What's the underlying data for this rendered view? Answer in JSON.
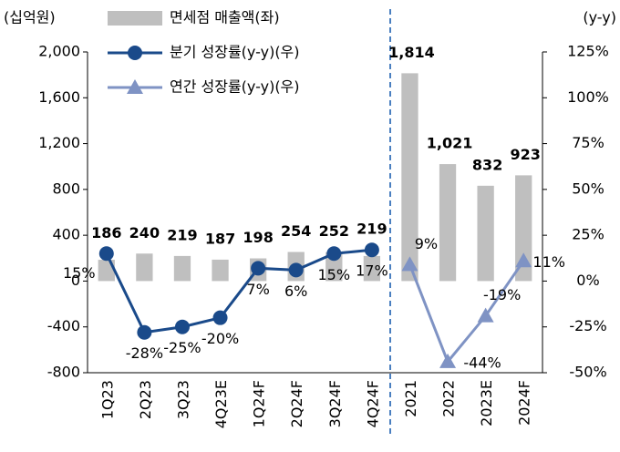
{
  "chart_data": {
    "type": "bar",
    "y_unit_label": "(십억원)",
    "y2_unit_label": "(y-y)",
    "categories": [
      "1Q23",
      "2Q23",
      "3Q23",
      "4Q23E",
      "1Q24F",
      "2Q24F",
      "3Q24F",
      "4Q24F",
      "2021",
      "2022",
      "2023E",
      "2024F"
    ],
    "series": [
      {
        "name": "면세점 매출액(좌)",
        "type": "bar",
        "color": "#bfbfbf",
        "values": [
          186,
          240,
          219,
          187,
          198,
          254,
          252,
          219,
          1814,
          1021,
          832,
          923
        ],
        "value_labels": [
          "186",
          "240",
          "219",
          "187",
          "198",
          "254",
          "252",
          "219",
          "1,814",
          "1,021",
          "832",
          "923"
        ]
      },
      {
        "name": "분기 성장률(y-y)(우)",
        "type": "line",
        "marker": "circle",
        "axis": "y2",
        "color": "#1a4a8a",
        "values": [
          15,
          -28,
          -25,
          -20,
          7,
          6,
          15,
          17,
          null,
          null,
          null,
          null
        ],
        "value_labels": [
          "15%",
          "-28%",
          "-25%",
          "-20%",
          "7%",
          "6%",
          "15%",
          "17%",
          null,
          null,
          null,
          null
        ]
      },
      {
        "name": "연간 성장률(y-y)(우)",
        "type": "line",
        "marker": "triangle",
        "axis": "y2",
        "color": "#7f93c4",
        "values": [
          null,
          null,
          null,
          null,
          null,
          null,
          null,
          null,
          9,
          -44,
          -19,
          11
        ],
        "value_labels": [
          null,
          null,
          null,
          null,
          null,
          null,
          null,
          null,
          "9%",
          "-44%",
          "-19%",
          "11%"
        ]
      }
    ],
    "ylim": [
      -800,
      2000
    ],
    "yticks": [
      {
        "value": -800,
        "label": "-800"
      },
      {
        "value": -400,
        "label": "-400"
      },
      0,
      400,
      800,
      {
        "value": 1200,
        "label": "1,200"
      },
      {
        "value": 1600,
        "label": "1,600"
      },
      {
        "value": 2000,
        "label": "2,000"
      }
    ],
    "y2lim": [
      -50,
      125
    ],
    "y2ticks": [
      {
        "value": -50,
        "label": "-50%"
      },
      {
        "value": -25,
        "label": "-25%"
      },
      {
        "value": 0,
        "label": "0%"
      },
      {
        "value": 25,
        "label": "25%"
      },
      {
        "value": 50,
        "label": "50%"
      },
      {
        "value": 75,
        "label": "75%"
      },
      {
        "value": 100,
        "label": "100%"
      },
      {
        "value": 125,
        "label": "125%"
      }
    ]
  }
}
